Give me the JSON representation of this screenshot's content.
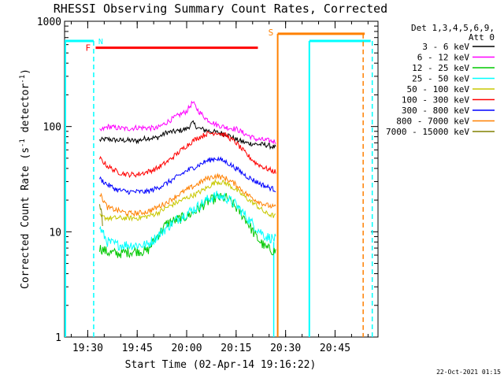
{
  "chart_data": {
    "type": "line",
    "title": "RHESSI Observing Summary Count Rates, Corrected",
    "xlabel": "Start Time (02-Apr-14 19:16:22)",
    "ylabel_prefix": "Corrected Count Rate (s",
    "ylabel_sup1": "-1",
    "ylabel_middle": " detector",
    "ylabel_sup2": "-1",
    "ylabel_suffix": ")",
    "yscale": "log",
    "ylim": [
      1,
      1000
    ],
    "xlim_minutes": [
      19.383,
      20.967
    ],
    "x_ticks": [
      {
        "t": 19.5,
        "label": "19:30"
      },
      {
        "t": 19.75,
        "label": "19:45"
      },
      {
        "t": 20.0,
        "label": "20:00"
      },
      {
        "t": 20.25,
        "label": "20:15"
      },
      {
        "t": 20.5,
        "label": "20:30"
      },
      {
        "t": 20.75,
        "label": "20:45"
      }
    ],
    "y_ticks": [
      {
        "v": 1,
        "label": "1"
      },
      {
        "v": 10,
        "label": "10"
      },
      {
        "v": 100,
        "label": "100"
      },
      {
        "v": 1000,
        "label": "1000"
      }
    ],
    "legend": {
      "header_line1": "Det 1,3,4,5,6,9,",
      "header_line2": "Att 0",
      "entries": [
        {
          "label": "3 - 6 keV",
          "color": "#000000"
        },
        {
          "label": "6 - 12 keV",
          "color": "#ff00ff"
        },
        {
          "label": "12 - 25 keV",
          "color": "#00c800"
        },
        {
          "label": "25 - 50 keV",
          "color": "#00ffff"
        },
        {
          "label": "50 - 100 keV",
          "color": "#c8c800"
        },
        {
          "label": "100 - 300 keV",
          "color": "#ff0000"
        },
        {
          "label": "300 - 800 keV",
          "color": "#0000ff"
        },
        {
          "label": "800 - 7000 keV",
          "color": "#ff8000"
        },
        {
          "label": "7000 - 15000 keV",
          "color": "#808000"
        }
      ]
    },
    "series": [
      {
        "name": "3 - 6 keV",
        "color": "#000000",
        "points": [
          [
            19.56,
            74
          ],
          [
            19.6,
            76
          ],
          [
            19.65,
            74
          ],
          [
            19.7,
            74
          ],
          [
            19.75,
            73
          ],
          [
            19.8,
            78
          ],
          [
            19.85,
            78
          ],
          [
            19.9,
            88
          ],
          [
            19.95,
            90
          ],
          [
            20.0,
            95
          ],
          [
            20.03,
            108
          ],
          [
            20.06,
            96
          ],
          [
            20.1,
            92
          ],
          [
            20.15,
            88
          ],
          [
            20.2,
            85
          ],
          [
            20.25,
            75
          ],
          [
            20.3,
            70
          ],
          [
            20.35,
            68
          ],
          [
            20.4,
            67
          ],
          [
            20.45,
            63
          ]
        ]
      },
      {
        "name": "6 - 12 keV",
        "color": "#ff00ff",
        "points": [
          [
            19.56,
            90
          ],
          [
            19.6,
            100
          ],
          [
            19.65,
            97
          ],
          [
            19.7,
            95
          ],
          [
            19.75,
            98
          ],
          [
            19.8,
            97
          ],
          [
            19.85,
            96
          ],
          [
            19.9,
            110
          ],
          [
            19.95,
            125
          ],
          [
            20.0,
            140
          ],
          [
            20.03,
            170
          ],
          [
            20.06,
            140
          ],
          [
            20.1,
            118
          ],
          [
            20.15,
            104
          ],
          [
            20.2,
            98
          ],
          [
            20.25,
            95
          ],
          [
            20.3,
            84
          ],
          [
            20.35,
            76
          ],
          [
            20.4,
            74
          ],
          [
            20.45,
            72
          ]
        ]
      },
      {
        "name": "12 - 25 keV",
        "color": "#00c800",
        "points": [
          [
            19.56,
            7
          ],
          [
            19.6,
            6.4
          ],
          [
            19.65,
            6.2
          ],
          [
            19.7,
            6.4
          ],
          [
            19.75,
            6.6
          ],
          [
            19.8,
            6.5
          ],
          [
            19.85,
            9
          ],
          [
            19.9,
            12
          ],
          [
            19.95,
            13
          ],
          [
            20.0,
            14
          ],
          [
            20.05,
            16
          ],
          [
            20.1,
            19
          ],
          [
            20.15,
            21
          ],
          [
            20.2,
            21
          ],
          [
            20.25,
            17
          ],
          [
            20.3,
            13
          ],
          [
            20.35,
            9
          ],
          [
            20.4,
            7
          ],
          [
            20.45,
            6.5
          ]
        ]
      },
      {
        "name": "25 - 50 keV",
        "color": "#00ffff",
        "points": [
          [
            19.56,
            11
          ],
          [
            19.6,
            8
          ],
          [
            19.65,
            7.5
          ],
          [
            19.7,
            7.5
          ],
          [
            19.75,
            7.5
          ],
          [
            19.8,
            7.5
          ],
          [
            19.85,
            9
          ],
          [
            19.9,
            11
          ],
          [
            19.95,
            13
          ],
          [
            20.0,
            15
          ],
          [
            20.05,
            17
          ],
          [
            20.1,
            20
          ],
          [
            20.15,
            22
          ],
          [
            20.2,
            21
          ],
          [
            20.25,
            18
          ],
          [
            20.3,
            14
          ],
          [
            20.35,
            11
          ],
          [
            20.4,
            9
          ],
          [
            20.45,
            8.5
          ]
        ]
      },
      {
        "name": "50 - 100 keV",
        "color": "#c8c800",
        "points": [
          [
            19.56,
            14
          ],
          [
            19.6,
            13.5
          ],
          [
            19.65,
            13.5
          ],
          [
            19.7,
            13.5
          ],
          [
            19.75,
            13.5
          ],
          [
            19.8,
            14
          ],
          [
            19.85,
            15
          ],
          [
            19.9,
            17
          ],
          [
            19.95,
            19
          ],
          [
            20.0,
            21
          ],
          [
            20.05,
            23
          ],
          [
            20.1,
            26
          ],
          [
            20.15,
            30
          ],
          [
            20.2,
            29
          ],
          [
            20.25,
            25
          ],
          [
            20.3,
            21
          ],
          [
            20.35,
            18
          ],
          [
            20.4,
            15
          ],
          [
            20.45,
            14
          ]
        ]
      },
      {
        "name": "100 - 300 keV",
        "color": "#ff0000",
        "points": [
          [
            19.56,
            50
          ],
          [
            19.6,
            42
          ],
          [
            19.65,
            37
          ],
          [
            19.7,
            35
          ],
          [
            19.75,
            35
          ],
          [
            19.8,
            37
          ],
          [
            19.85,
            40
          ],
          [
            19.9,
            46
          ],
          [
            19.95,
            55
          ],
          [
            20.0,
            66
          ],
          [
            20.05,
            77
          ],
          [
            20.1,
            85
          ],
          [
            20.15,
            88
          ],
          [
            20.2,
            82
          ],
          [
            20.25,
            70
          ],
          [
            20.3,
            55
          ],
          [
            20.35,
            45
          ],
          [
            20.4,
            40
          ],
          [
            20.45,
            37
          ]
        ]
      },
      {
        "name": "300 - 800 keV",
        "color": "#0000ff",
        "points": [
          [
            19.56,
            32
          ],
          [
            19.6,
            28
          ],
          [
            19.65,
            25
          ],
          [
            19.7,
            24
          ],
          [
            19.75,
            24
          ],
          [
            19.8,
            24
          ],
          [
            19.85,
            26
          ],
          [
            19.9,
            29
          ],
          [
            19.95,
            33
          ],
          [
            20.0,
            38
          ],
          [
            20.05,
            42
          ],
          [
            20.1,
            47
          ],
          [
            20.15,
            50
          ],
          [
            20.2,
            46
          ],
          [
            20.25,
            40
          ],
          [
            20.3,
            34
          ],
          [
            20.35,
            30
          ],
          [
            20.4,
            27
          ],
          [
            20.45,
            25
          ]
        ]
      },
      {
        "name": "800 - 7000 keV",
        "color": "#ff8000",
        "points": [
          [
            19.56,
            23
          ],
          [
            19.6,
            17
          ],
          [
            19.65,
            16
          ],
          [
            19.7,
            15
          ],
          [
            19.75,
            15
          ],
          [
            19.8,
            15.5
          ],
          [
            19.85,
            17
          ],
          [
            19.9,
            19
          ],
          [
            19.95,
            22
          ],
          [
            20.0,
            25
          ],
          [
            20.05,
            28
          ],
          [
            20.1,
            32
          ],
          [
            20.15,
            34
          ],
          [
            20.2,
            32
          ],
          [
            20.25,
            28
          ],
          [
            20.3,
            23
          ],
          [
            20.35,
            20
          ],
          [
            20.4,
            18
          ],
          [
            20.45,
            17
          ]
        ]
      },
      {
        "name": "7000 - 15000 keV",
        "color": "#808000",
        "points": [
          [
            19.56,
            18
          ],
          [
            19.57,
            15
          ],
          [
            19.575,
            12
          ]
        ]
      }
    ],
    "flags": {
      "night_level": 650,
      "night_color": "#00ffff",
      "night_segments": [
        [
          19.383,
          19.53
        ],
        [
          20.62,
          20.93
        ]
      ],
      "night_end_marks": [
        19.53,
        20.44,
        20.62
      ],
      "night_dashed_marks": [
        19.53,
        20.93
      ],
      "night_start_left": 19.383,
      "flare_label": "F",
      "flare_color": "#ff0000",
      "flare_level": 560,
      "flare_range": [
        19.54,
        20.36
      ],
      "saa_label": "S",
      "saa_color": "#ff8000",
      "saa_level": 760,
      "saa_range": [
        20.46,
        20.9
      ],
      "saa_start_line": 20.46,
      "saa_dashed": 20.9,
      "n_label": "N",
      "n_color": "#00ffff"
    },
    "footer_date": "22-Oct-2021 01:15"
  }
}
